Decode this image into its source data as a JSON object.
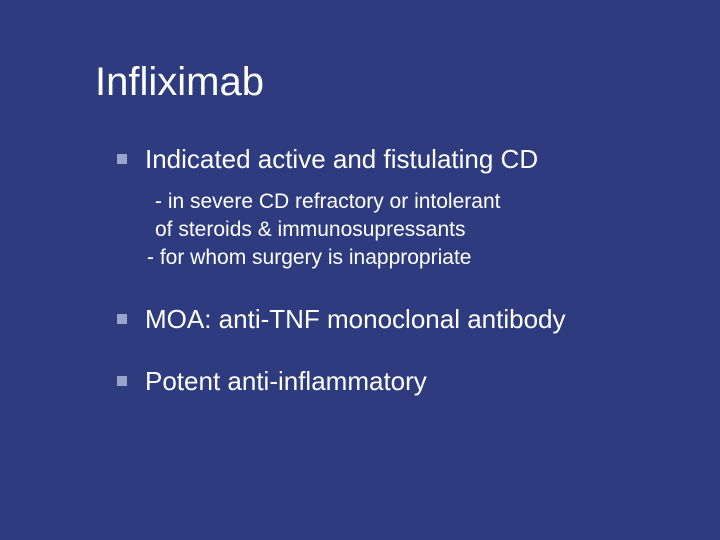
{
  "slide": {
    "background_color": "#2e3b7f",
    "text_color": "#ffffff",
    "bullet_color": "#9aa3c9",
    "title": "Infliximab",
    "title_fontsize": 40,
    "bullet_fontsize": 26,
    "sub_fontsize": 21,
    "bullets": [
      {
        "text": "Indicated active and fistulating CD",
        "sub": [
          {
            "text": "- in severe CD refractory or intolerant",
            "indent": "indent1"
          },
          {
            "text": "of steroids & immunosupressants",
            "indent": "indent1"
          },
          {
            "text": "- for whom surgery is inappropriate",
            "indent": "indent0"
          }
        ]
      },
      {
        "text": "MOA: anti-TNF monoclonal antibody",
        "sub": []
      },
      {
        "text": "Potent anti-inflammatory",
        "sub": []
      }
    ]
  }
}
